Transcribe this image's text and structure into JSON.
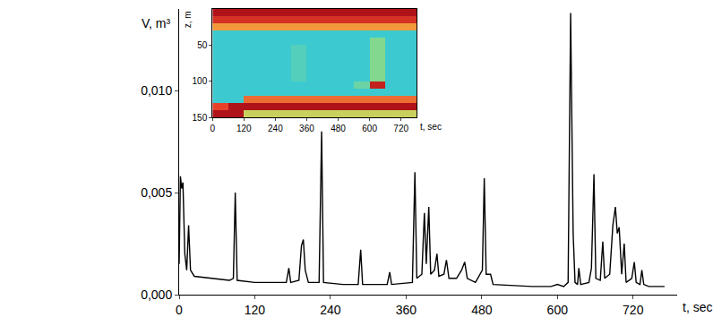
{
  "chart_data": [
    {
      "type": "line",
      "x": [
        0,
        2,
        4,
        6,
        9,
        12,
        15,
        18,
        24,
        50,
        80,
        86,
        89,
        92,
        120,
        170,
        174,
        177,
        190,
        194,
        197,
        200,
        205,
        222,
        226,
        229,
        260,
        284,
        288,
        291,
        330,
        334,
        337,
        370,
        374,
        377,
        385,
        389,
        392,
        396,
        399,
        405,
        409,
        412,
        420,
        424,
        428,
        440,
        448,
        453,
        457,
        470,
        481,
        484,
        487,
        494,
        498,
        560,
        590,
        600,
        610,
        617,
        621,
        625,
        628,
        632,
        634,
        637,
        650,
        654,
        658,
        661,
        668,
        672,
        675,
        683,
        688,
        692,
        695,
        698,
        702,
        706,
        709,
        718,
        722,
        725,
        731,
        734,
        737,
        745,
        770
      ],
      "values": [
        0.0015,
        0.0058,
        0.0052,
        0.0055,
        0.002,
        0.0012,
        0.0034,
        0.0012,
        0.0009,
        0.0008,
        0.0007,
        0.0008,
        0.005,
        0.0007,
        0.0006,
        0.0006,
        0.0013,
        0.0006,
        0.0007,
        0.0024,
        0.0027,
        0.0012,
        0.0006,
        0.0006,
        0.008,
        0.0006,
        0.0005,
        0.0005,
        0.0022,
        0.0005,
        0.0005,
        0.0011,
        0.0005,
        0.0006,
        0.006,
        0.0008,
        0.001,
        0.004,
        0.0015,
        0.0043,
        0.001,
        0.0012,
        0.002,
        0.0009,
        0.001,
        0.0017,
        0.0008,
        0.0008,
        0.0012,
        0.0016,
        0.0008,
        0.0006,
        0.0012,
        0.0057,
        0.001,
        0.001,
        0.0005,
        0.0004,
        0.0004,
        0.0005,
        0.0004,
        0.0006,
        0.0138,
        0.003,
        0.0006,
        0.0005,
        0.0013,
        0.0005,
        0.0006,
        0.0013,
        0.0059,
        0.0008,
        0.0007,
        0.0026,
        0.0008,
        0.001,
        0.0034,
        0.0043,
        0.003,
        0.0033,
        0.001,
        0.0025,
        0.0006,
        0.0008,
        0.0016,
        0.0006,
        0.0005,
        0.0012,
        0.0005,
        0.0004,
        0.0004
      ],
      "color": "#000000",
      "xlim": [
        0,
        790
      ],
      "xticks": [
        0,
        120,
        240,
        360,
        480,
        600,
        720
      ],
      "ylim": [
        0,
        0.014
      ],
      "yticks": [
        {
          "value": 0,
          "label": "0,000"
        },
        {
          "value": 0.005,
          "label": "0,005"
        },
        {
          "value": 0.01,
          "label": "0,010"
        }
      ],
      "x_label": "t, sec",
      "y_label": "V, m³",
      "grid": false
    },
    {
      "type": "heatmap",
      "x_edges": [
        0,
        60,
        120,
        180,
        240,
        300,
        360,
        420,
        480,
        540,
        600,
        660,
        720,
        780
      ],
      "y_edges": [
        0,
        10,
        20,
        30,
        40,
        50,
        60,
        70,
        80,
        90,
        100,
        110,
        120,
        130,
        140,
        150
      ],
      "cells": [
        [
          1,
          1,
          1,
          1,
          1,
          1,
          1,
          1,
          1,
          1,
          1,
          1,
          1
        ],
        [
          0.9,
          0.9,
          0.9,
          0.9,
          0.9,
          0.9,
          0.9,
          0.9,
          0.9,
          0.9,
          0.9,
          0.9,
          0.9
        ],
        [
          0.75,
          0.75,
          0.75,
          0.75,
          0.75,
          0.75,
          0.75,
          0.75,
          0.75,
          0.75,
          0.75,
          0.75,
          0.75
        ],
        [
          0.3,
          0.3,
          0.3,
          0.3,
          0.3,
          0.3,
          0.3,
          0.3,
          0.3,
          0.3,
          0.3,
          0.3,
          0.3
        ],
        [
          0.3,
          0.3,
          0.3,
          0.3,
          0.3,
          0.3,
          0.3,
          0.3,
          0.3,
          0.3,
          0.45,
          0.3,
          0.3
        ],
        [
          0.3,
          0.3,
          0.3,
          0.3,
          0.3,
          0.35,
          0.3,
          0.3,
          0.3,
          0.3,
          0.45,
          0.3,
          0.3
        ],
        [
          0.3,
          0.3,
          0.3,
          0.3,
          0.3,
          0.35,
          0.3,
          0.3,
          0.3,
          0.3,
          0.45,
          0.3,
          0.3
        ],
        [
          0.3,
          0.3,
          0.3,
          0.3,
          0.3,
          0.35,
          0.3,
          0.3,
          0.3,
          0.3,
          0.45,
          0.3,
          0.3
        ],
        [
          0.3,
          0.3,
          0.3,
          0.3,
          0.3,
          0.35,
          0.3,
          0.3,
          0.3,
          0.3,
          0.45,
          0.3,
          0.3
        ],
        [
          0.3,
          0.3,
          0.3,
          0.3,
          0.3,
          0.35,
          0.3,
          0.3,
          0.3,
          0.3,
          0.45,
          0.3,
          0.3
        ],
        [
          0.3,
          0.3,
          0.3,
          0.3,
          0.3,
          0.3,
          0.3,
          0.3,
          0.3,
          0.4,
          0.95,
          0.3,
          0.3
        ],
        [
          0.3,
          0.3,
          0.3,
          0.3,
          0.3,
          0.3,
          0.3,
          0.3,
          0.3,
          0.3,
          0.3,
          0.3,
          0.3
        ],
        [
          0.3,
          0.3,
          0.8,
          0.8,
          0.8,
          0.8,
          0.8,
          0.8,
          0.8,
          0.8,
          0.8,
          0.8,
          0.8
        ],
        [
          0.85,
          1,
          1,
          1,
          1,
          1,
          1,
          1,
          1,
          1,
          1,
          1,
          1
        ],
        [
          1,
          1,
          0.6,
          0.6,
          0.6,
          0.6,
          0.6,
          0.6,
          0.6,
          0.6,
          0.6,
          0.6,
          0.6
        ]
      ],
      "color_range": [
        0,
        1
      ],
      "xlim": [
        0,
        780
      ],
      "ylim": [
        150,
        0
      ],
      "xticks": [
        0,
        120,
        240,
        360,
        480,
        600,
        720
      ],
      "yticks": [
        50,
        100,
        150
      ],
      "x_label": "t, sec",
      "y_label": "z, m"
    }
  ]
}
